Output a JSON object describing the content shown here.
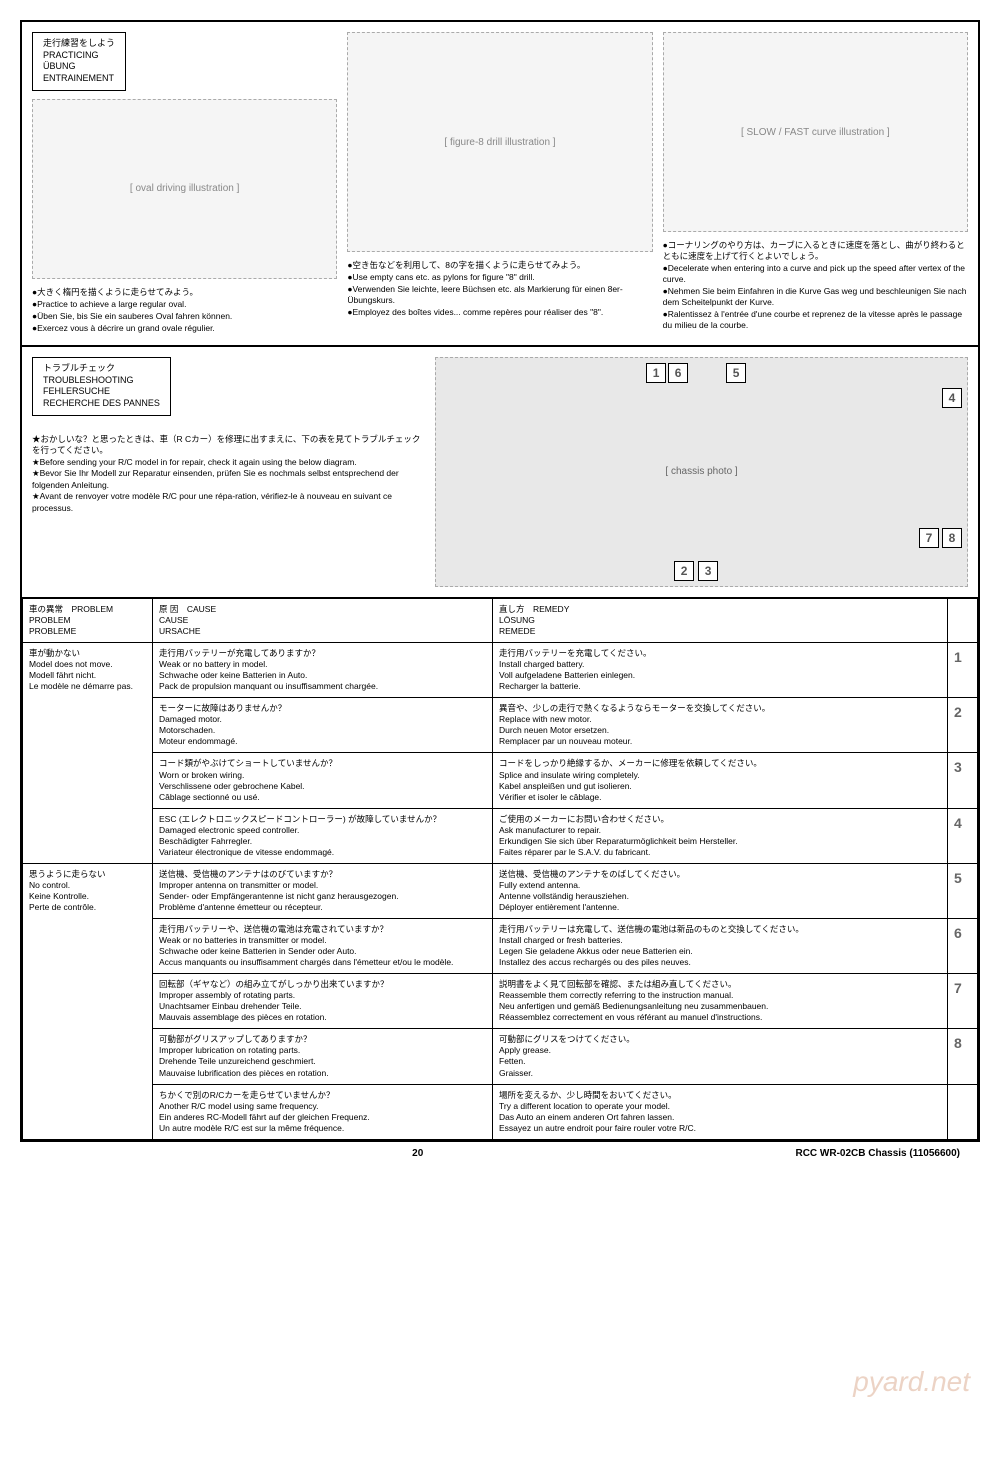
{
  "practicing": {
    "title_jp": "走行練習をしよう",
    "title_en": "PRACTICING",
    "title_de": "ÜBUNG",
    "title_fr": "ENTRAINEMENT",
    "col1": {
      "bullets": [
        "●大きく楕円を描くように走らせてみよう。",
        "●Practice to achieve a large regular oval.",
        "●Üben Sie, bis Sie ein sauberes Oval fahren können.",
        "●Exercez vous à décrire un grand ovale régulier."
      ]
    },
    "col2": {
      "bullets": [
        "●空き缶などを利用して、8の字を描くように走らせてみよう。",
        "●Use empty cans etc. as pylons for figure \"8\" drill.",
        "●Verwenden Sie leichte, leere Büchsen etc. als Markierung für einen 8er-Übungskurs.",
        "●Employez des boîtes vides... comme repères pour réaliser des \"8\"."
      ]
    },
    "col3": {
      "bullets": [
        "●コーナリングのやり方は、カーブに入るときに速度を落とし、曲がり終わるとともに速度を上げて行くとよいでしょう。",
        "●Decelerate when entering into a curve and pick up the speed after vertex of the curve.",
        "●Nehmen Sie beim Einfahren in die Kurve Gas weg und beschleunigen Sie nach dem Scheitelpunkt der Kurve.",
        "●Ralentissez à l'entrée d'une courbe et reprenez de la vitesse après le passage du milieu de la courbe."
      ]
    }
  },
  "troubleshoot": {
    "title_jp": "トラブルチェック",
    "title_en": "TROUBLESHOOTING",
    "title_de": "FEHLERSUCHE",
    "title_fr": "RECHERCHE DES PANNES",
    "intro": [
      "★おかしいな？と思ったときは、車（R Cカー）を修理に出すまえに、下の表を見てトラブルチェックを行ってください。",
      "★Before sending your R/C model in for repair, check it again using the below diagram.",
      "★Bevor Sie Ihr Modell zur Reparatur einsenden, prüfen Sie es nochmals selbst entsprechend der folgenden Anleitung.",
      "★Avant de renvoyer votre modèle R/C pour une répa-ration, vérifiez-le à nouveau en suivant ce processus."
    ],
    "headers": {
      "problem": "車の異常　PROBLEM\nPROBLEM\nPROBLEME",
      "cause": "原 因　CAUSE\nCAUSE\nURSACHE",
      "remedy": "直し方　REMEDY\nLÖSUNG\nREMEDE"
    },
    "rows": [
      {
        "problem": "車が動かない\nModel does not move.\nModell fährt nicht.\nLe modèle ne démarre pas.",
        "items": [
          {
            "num": "1",
            "cause": "走行用バッテリーが充電してありますか？\nWeak or no battery in model.\nSchwache oder keine Batterien in Auto.\nPack de propulsion manquant ou insuffisamment chargée.",
            "remedy": "走行用バッテリーを充電してください。\nInstall charged battery.\nVoll aufgeladene Batterien einlegen.\nRecharger la batterie."
          },
          {
            "num": "2",
            "cause": "モーターに故障はありませんか？\nDamaged motor.\nMotorschaden.\nMoteur endommagé.",
            "remedy": "異音や、少しの走行で熱くなるようならモーターを交換してください。\nReplace with new motor.\nDurch neuen Motor ersetzen.\nRemplacer par un nouveau moteur."
          },
          {
            "num": "3",
            "cause": "コード類がやぶけてショートしていませんか？\nWorn or broken wiring.\nVerschlissene oder gebrochene Kabel.\nCâblage sectionné ou usé.",
            "remedy": "コードをしっかり絶縁するか、メーカーに修理を依頼してください。\nSplice and insulate wiring completely.\nKabel anspleißen und gut isolieren.\nVérifier et isoler le câblage."
          },
          {
            "num": "4",
            "cause": "ESC (エレクトロニックスピードコントローラー) が故障していませんか？\nDamaged electronic speed controller.\nBeschädigter Fahrregler.\nVariateur électronique de vitesse endommagé.",
            "remedy": "ご使用のメーカーにお問い合わせください。\nAsk manufacturer to repair.\nErkundigen Sie sich über Reparaturmöglichkeit beim Hersteller.\nFaites réparer par le S.A.V. du fabricant."
          }
        ]
      },
      {
        "problem": "思うように走らない\nNo control.\nKeine Kontrolle.\nPerte de contrôle.",
        "items": [
          {
            "num": "5",
            "cause": "送信機、受信機のアンテナはのびていますか？\nImproper antenna on transmitter or model.\nSender- oder Empfängerantenne ist nicht ganz herausgezogen.\nProblème d'antenne émetteur ou récepteur.",
            "remedy": "送信機、受信機のアンテナをのばしてください。\nFully extend antenna.\nAntenne vollständig herausziehen.\nDéployer entièrement l'antenne."
          },
          {
            "num": "6",
            "cause": "走行用バッテリーや、送信機の電池は充電されていますか？\nWeak or no batteries in transmitter or model.\nSchwache oder keine Batterien in Sender oder Auto.\nAccus manquants ou insuffisamment chargés dans l'émetteur et/ou le modèle.",
            "remedy": "走行用バッテリーは充電して、送信機の電池は新品のものと交換してください。\nInstall charged or fresh batteries.\nLegen Sie geladene Akkus oder neue Batterien ein.\nInstallez des accus rechargés ou des piles neuves."
          },
          {
            "num": "7",
            "cause": "回転部（ギヤなど）の組み立てがしっかり出来ていますか？\nImproper assembly of rotating parts.\nUnachtsamer Einbau drehender Teile.\nMauvais assemblage des pièces en rotation.",
            "remedy": "説明書をよく見て回転部を確認、または組み直してください。\nReassemble them correctly referring to the instruction manual.\nNeu anfertigen und gemäß Bedienungsanleitung neu zusammenbauen.\nRéassemblez correctement en vous référant au manuel d'instructions."
          },
          {
            "num": "8",
            "cause": "可動部がグリスアップしてありますか？\nImproper lubrication on rotating parts.\nDrehende Teile unzureichend geschmiert.\nMauvaise lubrification des pièces en rotation.",
            "remedy": "可動部にグリスをつけてください。\nApply grease.\nFetten.\nGraisser."
          },
          {
            "num": "",
            "cause": "ちかくで別のR/Cカーを走らせていませんか？\nAnother R/C model using same frequency.\nEin anderes RC-Modell fährt auf der gleichen Frequenz.\nUn autre modèle R/C est sur la même fréquence.",
            "remedy": "場所を変えるか、少し時間をおいてください。\nTry a different location to operate your model.\nDas Auto an einem anderen Ort fahren lassen.\nEssayez un autre endroit pour faire rouler votre R/C."
          }
        ]
      }
    ]
  },
  "footer": {
    "page": "20",
    "ref": "RCC WR-02CB Chassis (11056600)"
  },
  "watermark": "pyard.net"
}
